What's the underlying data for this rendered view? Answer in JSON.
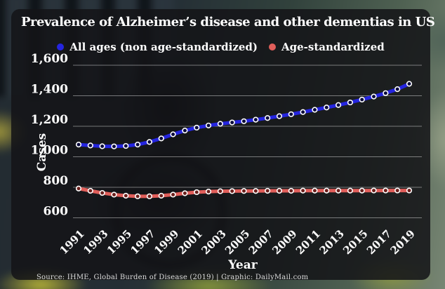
{
  "title": "Prevalence of Alzheimer’s disease and other dementias in US",
  "legend": [
    {
      "label": "All ages (non age-standardized)"
    },
    {
      "label": "Age-standardized"
    }
  ],
  "axes": {
    "y_title": "Cases",
    "x_title": "Year"
  },
  "source": "Source: IHME, Global Burden of Disease (2019)  |  Graphic: DailyMail.com",
  "colors": {
    "all_ages_line": "#2525e0",
    "age_standardized_line": "#e05e5a",
    "gridline": "rgba(255,255,255,0.42)",
    "text": "#ffffff",
    "panel_background": "rgba(20,20,23,0.86)"
  },
  "chart_data": {
    "type": "line",
    "title": "Prevalence of Alzheimer’s disease and other dementias in US",
    "xlabel": "Year",
    "ylabel": "Cases",
    "ylim": [
      600,
      1600
    ],
    "grid": true,
    "legend_position": "top",
    "x": [
      1991,
      1992,
      1993,
      1994,
      1995,
      1996,
      1997,
      1998,
      1999,
      2000,
      2001,
      2002,
      2003,
      2004,
      2005,
      2006,
      2007,
      2008,
      2009,
      2010,
      2011,
      2012,
      2013,
      2014,
      2015,
      2016,
      2017,
      2018,
      2019
    ],
    "x_ticks": [
      1991,
      1993,
      1995,
      1997,
      1999,
      2001,
      2003,
      2005,
      2007,
      2009,
      2011,
      2013,
      2015,
      2017,
      2019
    ],
    "y_ticks": [
      {
        "label": "1,600",
        "value": 1600
      },
      {
        "label": "1,400",
        "value": 1400
      },
      {
        "label": "1,200",
        "value": 1200
      },
      {
        "label": "1,000",
        "value": 1000
      },
      {
        "label": "800",
        "value": 800
      },
      {
        "label": "600",
        "value": 600
      }
    ],
    "series": [
      {
        "id": "all-ages",
        "name": "All ages (non age-standardized)",
        "color": "#2525e0",
        "marker_fill": "#0a0a3c",
        "values": [
          1080,
          1074,
          1069,
          1068,
          1071,
          1080,
          1097,
          1120,
          1147,
          1172,
          1191,
          1205,
          1216,
          1225,
          1233,
          1243,
          1254,
          1266,
          1279,
          1293,
          1308,
          1323,
          1339,
          1356,
          1375,
          1395,
          1417,
          1443,
          1478
        ]
      },
      {
        "id": "age-standardized",
        "name": "Age-standardized",
        "color": "#e05e5a",
        "marker_fill": "#6b1f1c",
        "values": [
          792,
          777,
          763,
          752,
          745,
          741,
          741,
          745,
          752,
          761,
          768,
          772,
          774,
          775,
          776,
          776,
          777,
          777,
          777,
          778,
          778,
          778,
          778,
          778,
          778,
          779,
          779,
          779,
          779
        ]
      }
    ]
  }
}
